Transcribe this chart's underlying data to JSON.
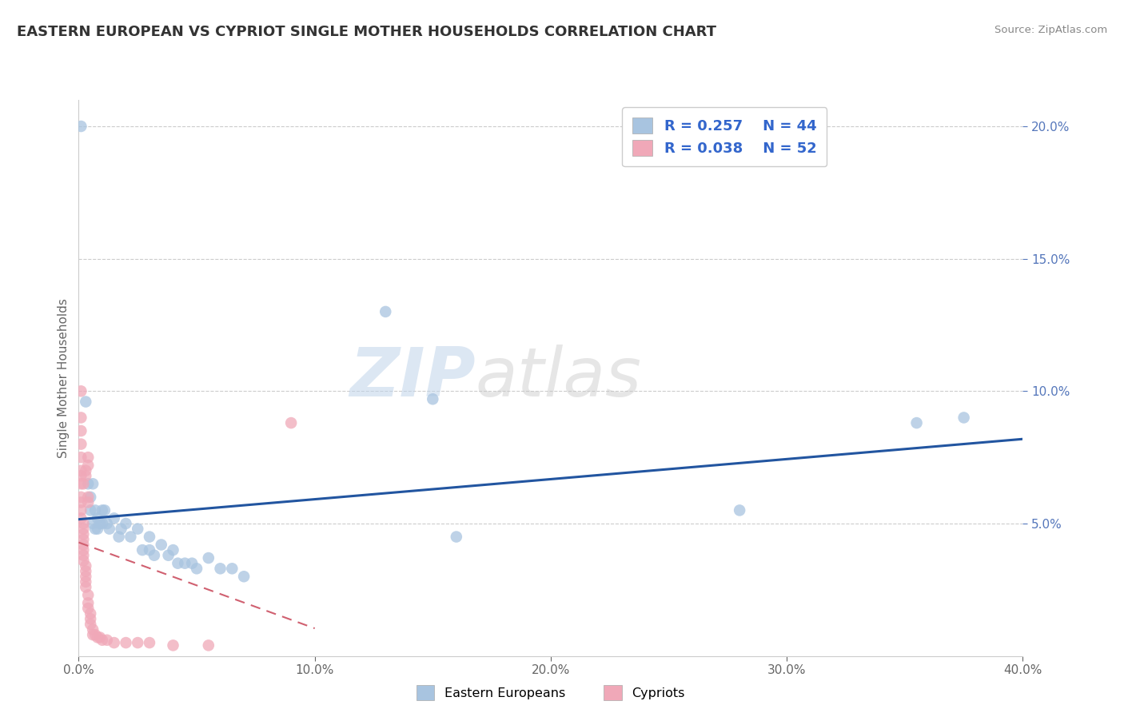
{
  "title": "EASTERN EUROPEAN VS CYPRIOT SINGLE MOTHER HOUSEHOLDS CORRELATION CHART",
  "source": "Source: ZipAtlas.com",
  "ylabel": "Single Mother Households",
  "xlim": [
    0.0,
    0.4
  ],
  "ylim": [
    0.0,
    0.21
  ],
  "xticks": [
    0.0,
    0.1,
    0.2,
    0.3,
    0.4
  ],
  "yticks": [
    0.05,
    0.1,
    0.15,
    0.2
  ],
  "legend_labels": [
    "Eastern Europeans",
    "Cypriots"
  ],
  "legend_r": [
    "R = 0.257",
    "R = 0.038"
  ],
  "legend_n": [
    "N = 44",
    "N = 52"
  ],
  "blue_color": "#a8c4e0",
  "pink_color": "#f0a8b8",
  "blue_line_color": "#2255a0",
  "pink_line_color": "#d06070",
  "watermark_zip": "ZIP",
  "watermark_atlas": "atlas",
  "blue_scatter": [
    [
      0.001,
      0.2
    ],
    [
      0.003,
      0.096
    ],
    [
      0.004,
      0.065
    ],
    [
      0.005,
      0.06
    ],
    [
      0.005,
      0.055
    ],
    [
      0.006,
      0.065
    ],
    [
      0.006,
      0.05
    ],
    [
      0.007,
      0.055
    ],
    [
      0.007,
      0.048
    ],
    [
      0.008,
      0.052
    ],
    [
      0.008,
      0.048
    ],
    [
      0.009,
      0.05
    ],
    [
      0.01,
      0.055
    ],
    [
      0.01,
      0.05
    ],
    [
      0.011,
      0.055
    ],
    [
      0.012,
      0.05
    ],
    [
      0.013,
      0.048
    ],
    [
      0.015,
      0.052
    ],
    [
      0.017,
      0.045
    ],
    [
      0.018,
      0.048
    ],
    [
      0.02,
      0.05
    ],
    [
      0.022,
      0.045
    ],
    [
      0.025,
      0.048
    ],
    [
      0.027,
      0.04
    ],
    [
      0.03,
      0.04
    ],
    [
      0.03,
      0.045
    ],
    [
      0.032,
      0.038
    ],
    [
      0.035,
      0.042
    ],
    [
      0.038,
      0.038
    ],
    [
      0.04,
      0.04
    ],
    [
      0.042,
      0.035
    ],
    [
      0.045,
      0.035
    ],
    [
      0.048,
      0.035
    ],
    [
      0.05,
      0.033
    ],
    [
      0.055,
      0.037
    ],
    [
      0.06,
      0.033
    ],
    [
      0.065,
      0.033
    ],
    [
      0.07,
      0.03
    ],
    [
      0.13,
      0.13
    ],
    [
      0.15,
      0.097
    ],
    [
      0.16,
      0.045
    ],
    [
      0.28,
      0.055
    ],
    [
      0.355,
      0.088
    ],
    [
      0.375,
      0.09
    ]
  ],
  "pink_scatter": [
    [
      0.001,
      0.1
    ],
    [
      0.001,
      0.09
    ],
    [
      0.001,
      0.085
    ],
    [
      0.001,
      0.08
    ],
    [
      0.001,
      0.075
    ],
    [
      0.001,
      0.07
    ],
    [
      0.001,
      0.068
    ],
    [
      0.001,
      0.065
    ],
    [
      0.001,
      0.06
    ],
    [
      0.001,
      0.058
    ],
    [
      0.001,
      0.055
    ],
    [
      0.001,
      0.052
    ],
    [
      0.002,
      0.05
    ],
    [
      0.002,
      0.048
    ],
    [
      0.002,
      0.046
    ],
    [
      0.002,
      0.044
    ],
    [
      0.002,
      0.042
    ],
    [
      0.002,
      0.04
    ],
    [
      0.002,
      0.038
    ],
    [
      0.002,
      0.036
    ],
    [
      0.002,
      0.065
    ],
    [
      0.003,
      0.034
    ],
    [
      0.003,
      0.032
    ],
    [
      0.003,
      0.03
    ],
    [
      0.003,
      0.028
    ],
    [
      0.003,
      0.026
    ],
    [
      0.003,
      0.07
    ],
    [
      0.003,
      0.068
    ],
    [
      0.004,
      0.075
    ],
    [
      0.004,
      0.072
    ],
    [
      0.004,
      0.06
    ],
    [
      0.004,
      0.058
    ],
    [
      0.004,
      0.023
    ],
    [
      0.004,
      0.02
    ],
    [
      0.004,
      0.018
    ],
    [
      0.005,
      0.016
    ],
    [
      0.005,
      0.014
    ],
    [
      0.005,
      0.012
    ],
    [
      0.006,
      0.01
    ],
    [
      0.006,
      0.008
    ],
    [
      0.007,
      0.008
    ],
    [
      0.008,
      0.007
    ],
    [
      0.009,
      0.007
    ],
    [
      0.01,
      0.006
    ],
    [
      0.012,
      0.006
    ],
    [
      0.015,
      0.005
    ],
    [
      0.02,
      0.005
    ],
    [
      0.025,
      0.005
    ],
    [
      0.03,
      0.005
    ],
    [
      0.04,
      0.004
    ],
    [
      0.055,
      0.004
    ],
    [
      0.09,
      0.088
    ]
  ]
}
